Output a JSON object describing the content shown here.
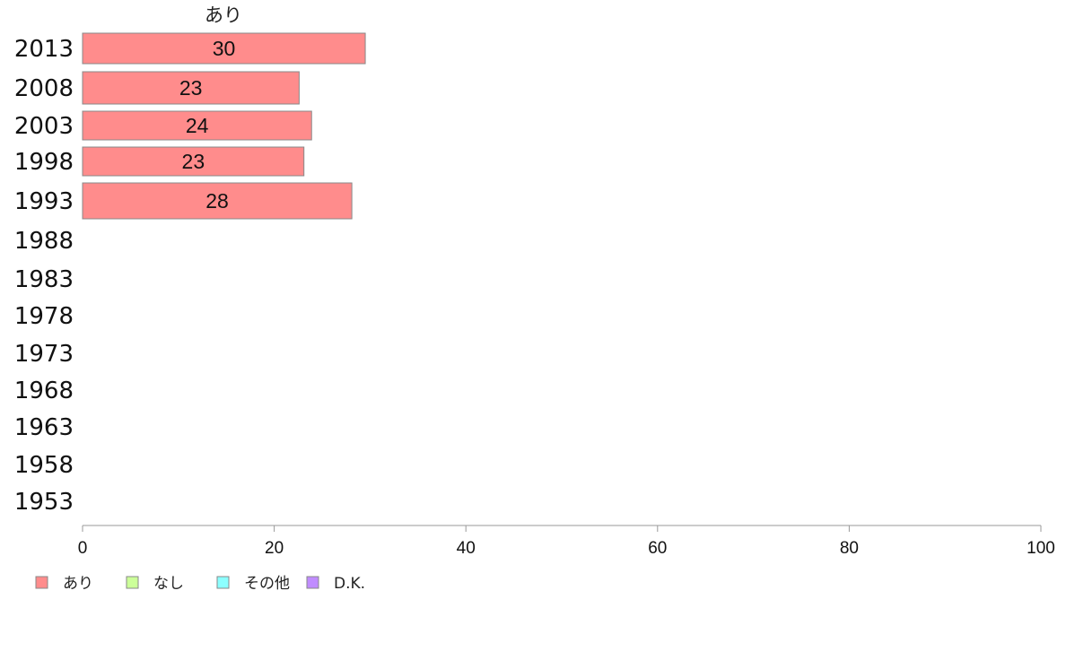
{
  "chart_data": {
    "type": "bar",
    "orientation": "horizontal",
    "column_header": "あり",
    "categories": [
      "2013",
      "2008",
      "2003",
      "1998",
      "1993",
      "1988",
      "1983",
      "1978",
      "1973",
      "1968",
      "1963",
      "1958",
      "1953"
    ],
    "series": [
      {
        "name": "あり",
        "color": "#ff8c8c",
        "values": [
          29.5,
          22.6,
          23.9,
          23.1,
          28.1,
          null,
          null,
          null,
          null,
          null,
          null,
          null,
          null
        ],
        "labels": [
          "30",
          "23",
          "24",
          "23",
          "28",
          "",
          "",
          "",
          "",
          "",
          "",
          "",
          ""
        ]
      },
      {
        "name": "なし",
        "color": "#ccff99",
        "values": [
          null,
          null,
          null,
          null,
          null,
          null,
          null,
          null,
          null,
          null,
          null,
          null,
          null
        ]
      },
      {
        "name": "その他",
        "color": "#8cffff",
        "values": [
          null,
          null,
          null,
          null,
          null,
          null,
          null,
          null,
          null,
          null,
          null,
          null,
          null
        ]
      },
      {
        "name": "D.K.",
        "color": "#c08cff",
        "values": [
          null,
          null,
          null,
          null,
          null,
          null,
          null,
          null,
          null,
          null,
          null,
          null,
          null
        ]
      }
    ],
    "xlim": [
      0,
      100
    ],
    "xticks": [
      "0",
      "20",
      "40",
      "60",
      "80",
      "100"
    ],
    "legend_position": "bottom-left",
    "grid": false
  }
}
